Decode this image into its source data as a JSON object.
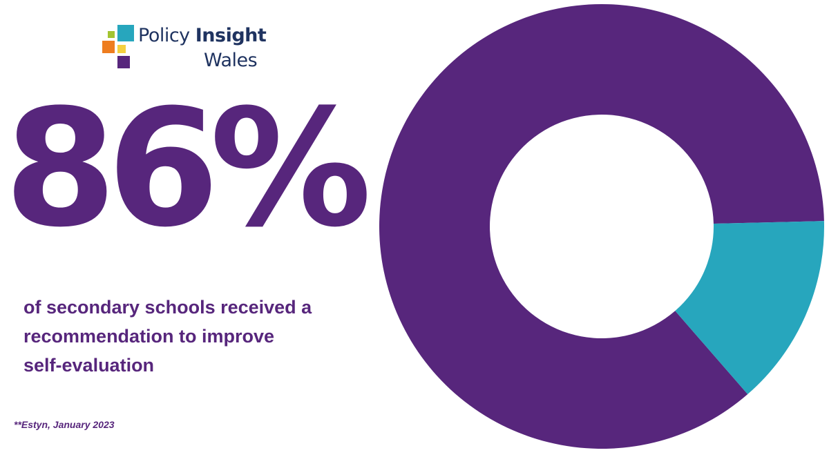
{
  "brand": {
    "name_part1": "Policy",
    "name_part2": "Insight",
    "name_part3": "Wales",
    "colors": {
      "text": "#1f3360",
      "green": "#a3c431",
      "teal": "#27a6bd",
      "orange": "#ee7d1f",
      "yellow": "#f4d03f",
      "purple": "#57267c"
    }
  },
  "headline": {
    "value": "86%",
    "description": "of secondary schools received a recommendation to improve self-evaluation"
  },
  "source": "**Estyn, January 2023",
  "chart_data": {
    "type": "pie",
    "variant": "donut",
    "slices": [
      {
        "value": 86,
        "color": "#57267c"
      },
      {
        "value": 14,
        "color": "#27a6bd"
      }
    ]
  }
}
